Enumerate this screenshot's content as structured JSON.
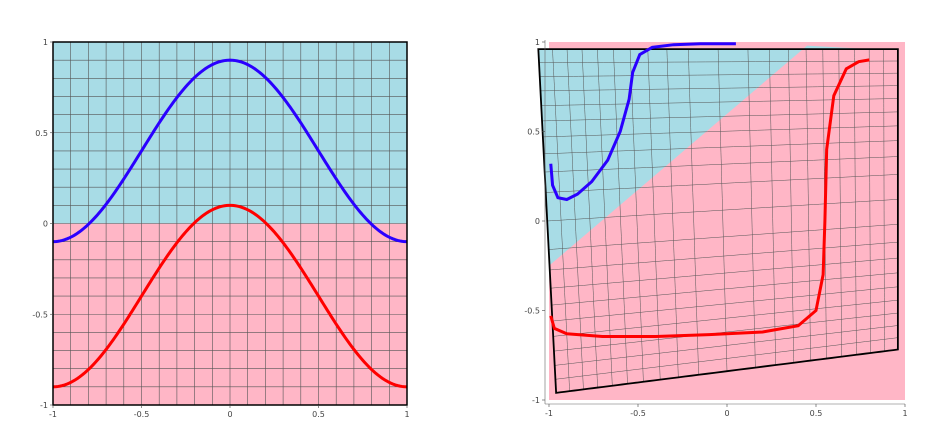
{
  "colors": {
    "upper_region": "#a8dce6",
    "lower_region": "#ffb6c6",
    "grid": "#555555",
    "frame": "#000000",
    "upper_curve": "#2a00ff",
    "lower_curve": "#ff0000"
  },
  "left_panel": {
    "x_ticks": [
      {
        "value": -1,
        "label": "-1"
      },
      {
        "value": -0.5,
        "label": "-0.5"
      },
      {
        "value": 0,
        "label": "0"
      },
      {
        "value": 0.5,
        "label": "0.5"
      },
      {
        "value": 1,
        "label": "1"
      }
    ],
    "y_ticks": [
      {
        "value": 1,
        "label": "1"
      },
      {
        "value": 0.5,
        "label": "0.5"
      },
      {
        "value": 0,
        "label": "0"
      },
      {
        "value": -0.5,
        "label": "-0.5"
      },
      {
        "value": -1,
        "label": "-1"
      }
    ],
    "upper_curve": {
      "amplitude": 0.5,
      "center": 0.4,
      "description": "y = 0.4 + 0.5*cos(pi*x)"
    },
    "lower_curve": {
      "amplitude": 0.5,
      "center": -0.4,
      "description": "y = -0.4 + 0.5*cos(pi*x)"
    },
    "region_boundary_y": 0
  },
  "right_panel": {
    "x_ticks": [
      {
        "value": -1,
        "label": "-1"
      },
      {
        "value": -0.5,
        "label": "-0.5"
      },
      {
        "value": 0,
        "label": "0"
      },
      {
        "value": 0.5,
        "label": "0.5"
      },
      {
        "value": 1,
        "label": "1"
      }
    ],
    "y_ticks": [
      {
        "value": 1,
        "label": "1"
      },
      {
        "value": 0.5,
        "label": "0.5"
      },
      {
        "value": 0,
        "label": "0"
      },
      {
        "value": -0.5,
        "label": "-0.5"
      },
      {
        "value": -1,
        "label": "-1"
      }
    ]
  }
}
